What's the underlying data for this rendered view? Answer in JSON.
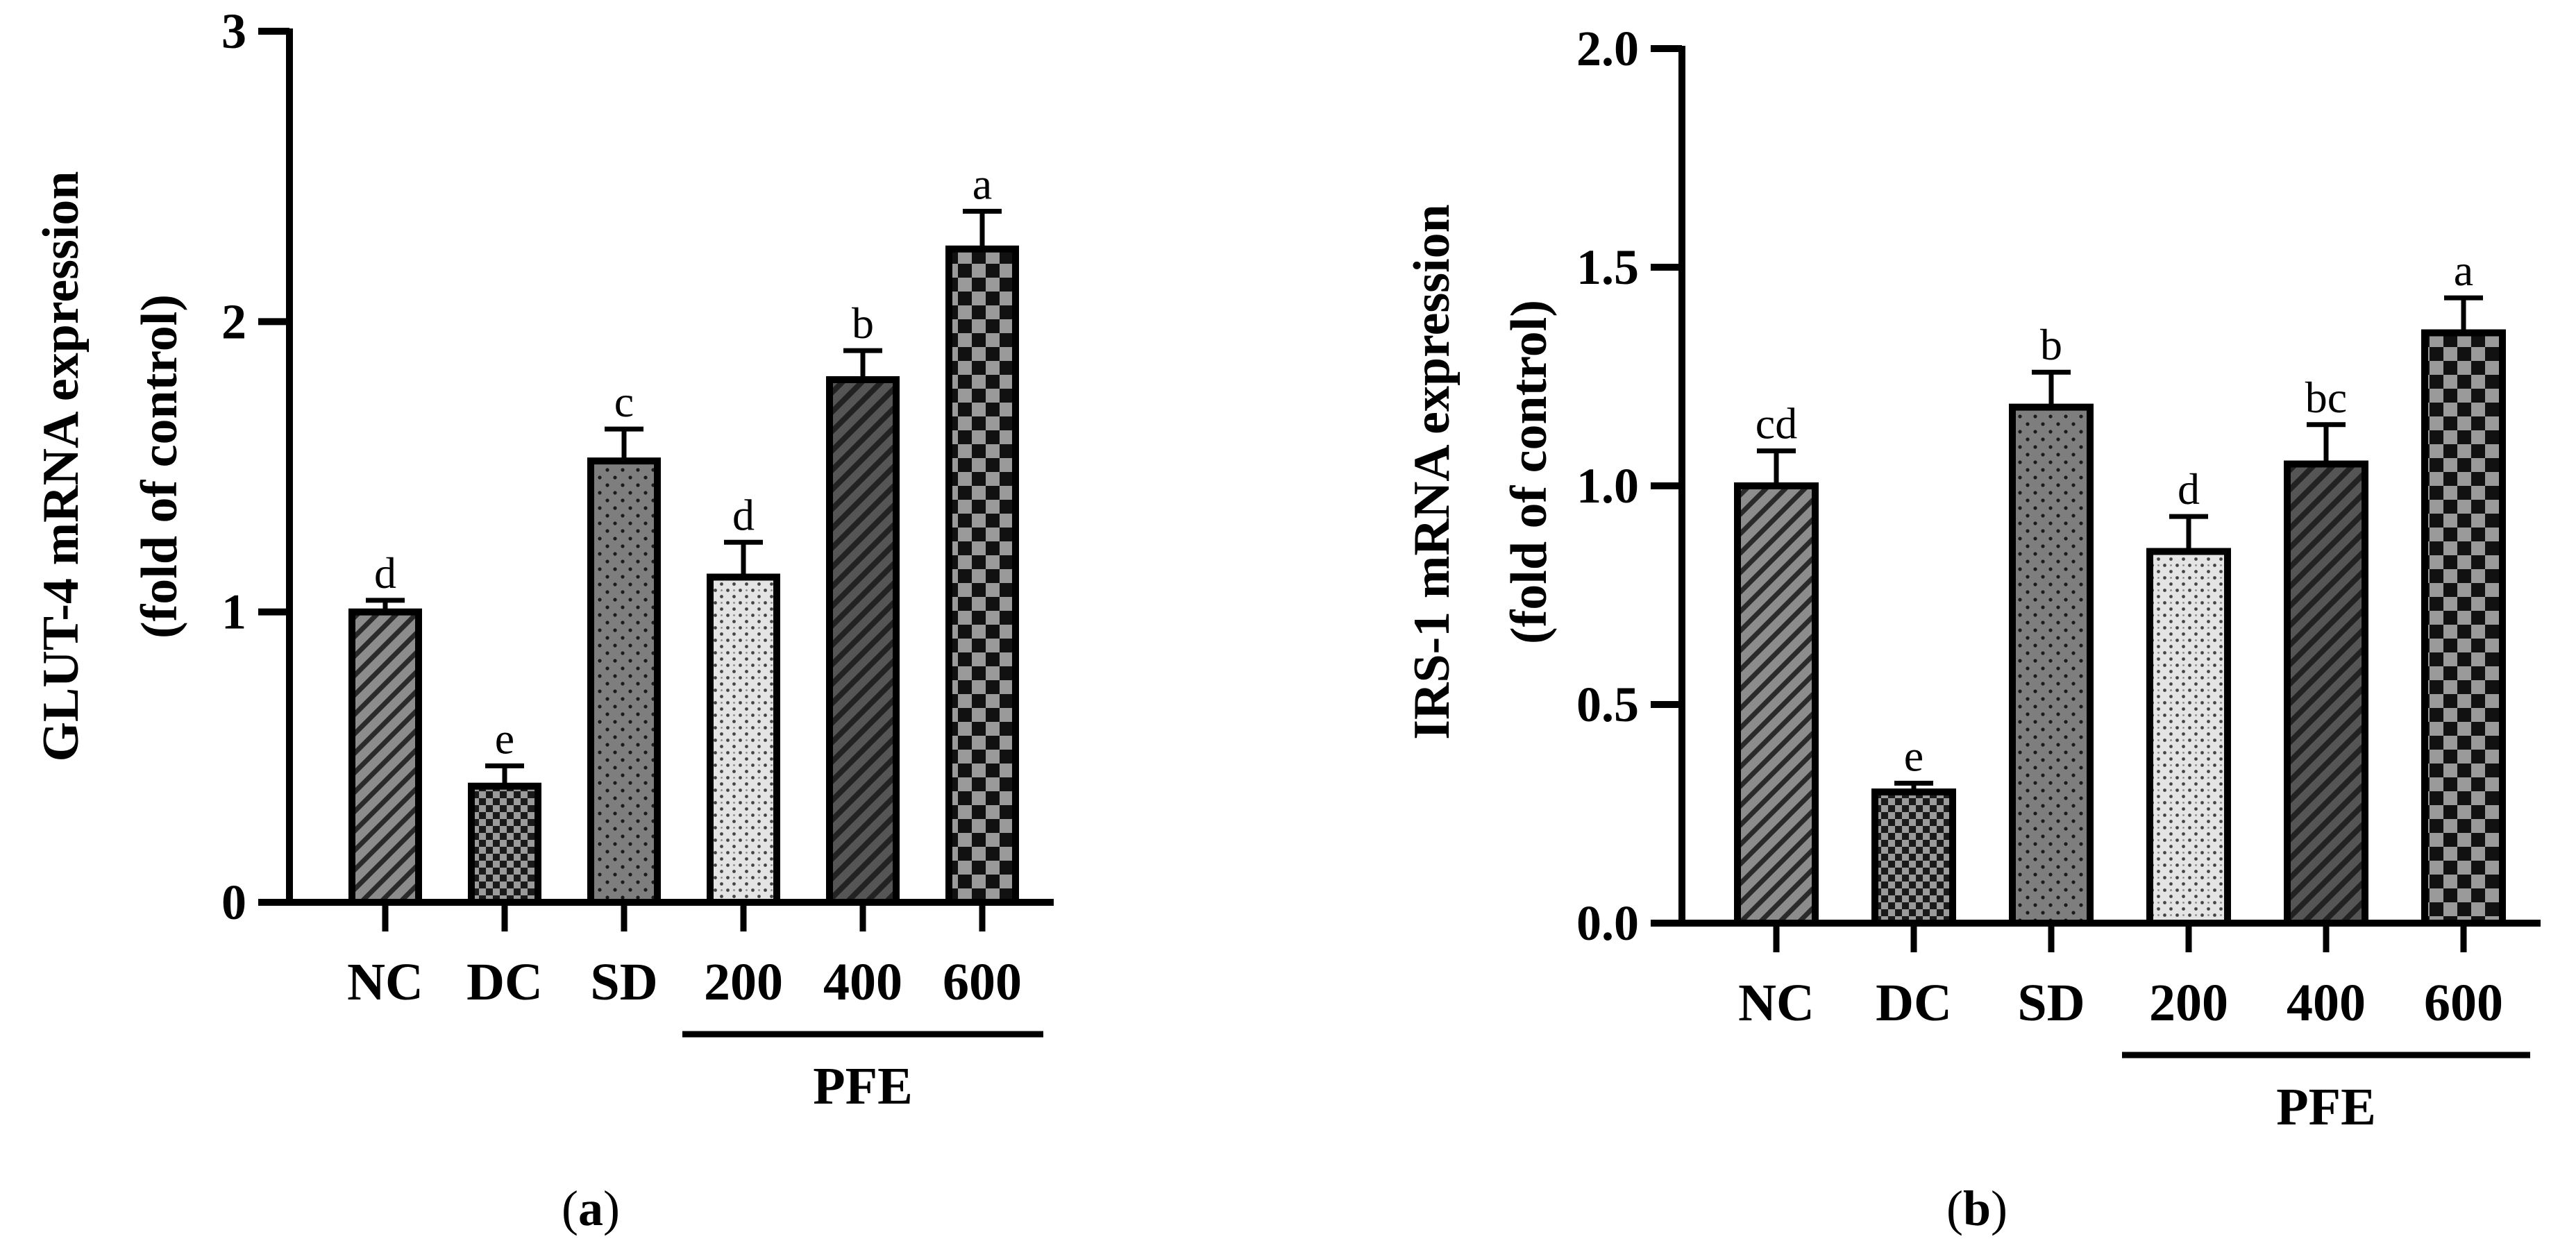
{
  "chart_data": [
    {
      "type": "bar",
      "panel_label": "a",
      "ylabel_line1": "GLUT-4 mRNA expression",
      "ylabel_line2": "(fold of control)",
      "ylim": [
        0,
        3
      ],
      "yticks": [
        "0",
        "1",
        "2",
        "3"
      ],
      "tick_values": [
        0,
        1,
        2,
        3
      ],
      "categories": [
        "NC",
        "DC",
        "SD",
        "200",
        "400",
        "600"
      ],
      "values": [
        1.0,
        0.4,
        1.52,
        1.12,
        1.8,
        2.25
      ],
      "errors": [
        0.04,
        0.07,
        0.11,
        0.12,
        0.1,
        0.13
      ],
      "significance": [
        "d",
        "e",
        "c",
        "d",
        "b",
        "a"
      ],
      "patterns": [
        "diag",
        "check-small",
        "dots",
        "crosshatch",
        "diag-dark",
        "check-large"
      ],
      "group_label": "PFE",
      "group_members": [
        "200",
        "400",
        "600"
      ]
    },
    {
      "type": "bar",
      "panel_label": "b",
      "ylabel_line1": "IRS-1 mRNA expression",
      "ylabel_line2": "(fold of control)",
      "ylim": [
        0,
        2
      ],
      "yticks": [
        "0.0",
        "0.5",
        "1.0",
        "1.5",
        "2.0"
      ],
      "tick_values": [
        0,
        0.5,
        1.0,
        1.5,
        2.0
      ],
      "categories": [
        "NC",
        "DC",
        "SD",
        "200",
        "400",
        "600"
      ],
      "values": [
        1.0,
        0.3,
        1.18,
        0.85,
        1.05,
        1.35
      ],
      "errors": [
        0.08,
        0.02,
        0.08,
        0.08,
        0.09,
        0.08
      ],
      "significance": [
        "cd",
        "e",
        "b",
        "d",
        "bc",
        "a"
      ],
      "patterns": [
        "diag",
        "check-small",
        "dots",
        "crosshatch",
        "diag-dark",
        "check-large"
      ],
      "group_label": "PFE",
      "group_members": [
        "200",
        "400",
        "600"
      ]
    }
  ]
}
